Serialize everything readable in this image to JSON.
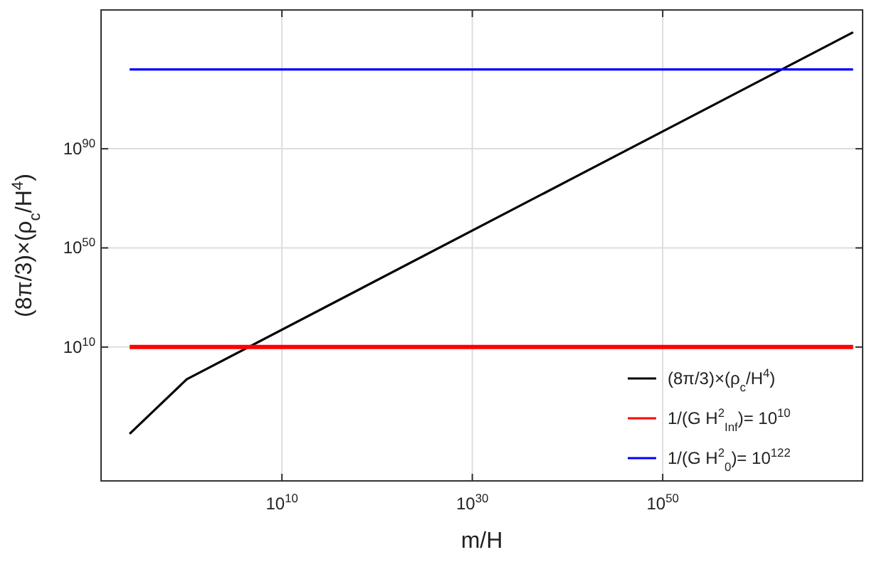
{
  "chart_data": {
    "type": "line",
    "xlabel": "m/H",
    "ylabel": "(8π/3)×(ρ$_{c}$/H$^{4}$)",
    "log": "xy",
    "grid": true,
    "legend": "bottom right",
    "line_style": "solid",
    "xlim": [
      1e-09,
      1e+71
    ],
    "ylim": [
      1e-44,
      1e+146
    ],
    "xticks": [
      {
        "value": 10000000000.0,
        "label": "10$^{10}$"
      },
      {
        "value": 1e+30,
        "label": "10$^{30}$"
      },
      {
        "value": 1e+50,
        "label": "10$^{50}$"
      }
    ],
    "yticks": [
      {
        "value": 10000000000.0,
        "label": "10$^{10}$"
      },
      {
        "value": 1e+50,
        "label": "10$^{50}$"
      },
      {
        "value": 1e+90,
        "label": "10$^{90}$"
      }
    ],
    "series": [
      {
        "name": "(8π/3)×(ρ$_{c}$/H$^{4}$)",
        "color": "#000000",
        "x": [
          1e-06,
          1,
          1e+70
        ],
        "values": [
          1e-25,
          0.001,
          1e+137
        ]
      },
      {
        "name": "1/(G H$^{2}$$_{Inf}$)= 10$^{10}$",
        "color": "#ff0000",
        "x": [
          1e-06,
          1e+70
        ],
        "values": [
          10000000000.0,
          10000000000.0
        ]
      },
      {
        "name": "1/(G H$^{2}$$_{0}$)= 10$^{122}$",
        "color": "#0000ff",
        "x": [
          1e-06,
          1e+70
        ],
        "values": [
          1e+122,
          1e+122
        ]
      }
    ]
  }
}
